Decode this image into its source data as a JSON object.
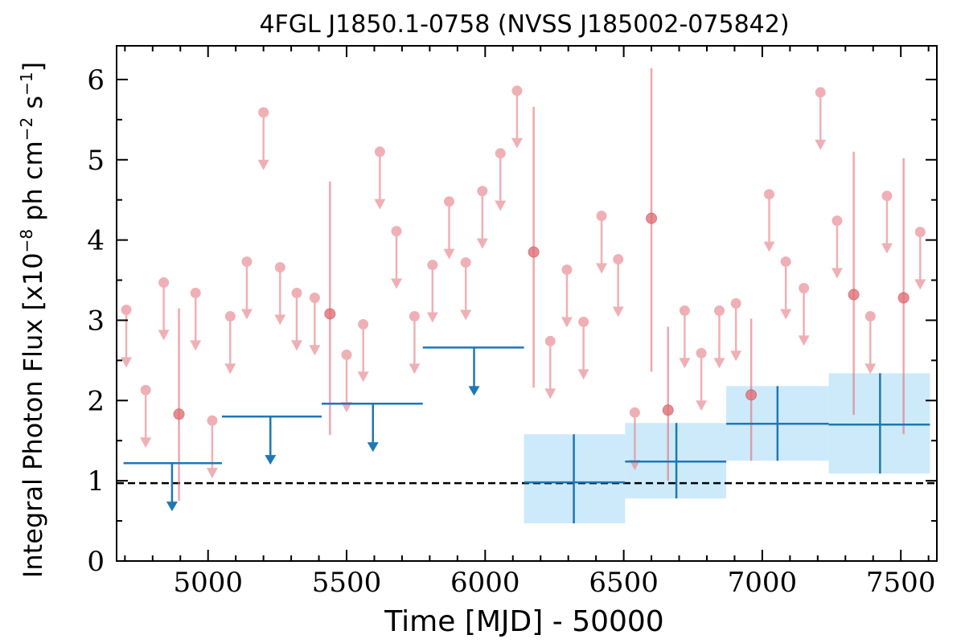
{
  "chart_data": {
    "type": "scatter",
    "title": "4FGL J1850.1-0758 (NVSS J185002-075842)",
    "xlabel": "Time [MJD] - 50000",
    "ylabel": "Integral Photon Flux [x10",
    "ylabel_exp": "−8",
    "ylabel_unit1": " ph cm",
    "ylabel_exp2": "−2",
    "ylabel_unit2": " s",
    "ylabel_exp3": "−1",
    "ylabel_end": "]",
    "xlim": [
      4670,
      7630
    ],
    "ylim": [
      0,
      6.42
    ],
    "x_ticks": [
      5000,
      5500,
      6000,
      6500,
      7000,
      7500
    ],
    "x_tick_labels": [
      "5000",
      "5500",
      "6000",
      "6500",
      "7000",
      "7500"
    ],
    "y_ticks": [
      0,
      1,
      2,
      3,
      4,
      5,
      6
    ],
    "y_tick_labels": [
      "0",
      "1",
      "2",
      "3",
      "4",
      "5",
      "6"
    ],
    "grid": false,
    "reference_line": {
      "y": 0.97,
      "style": "dashed",
      "color": "#000000"
    },
    "series": [
      {
        "marker": "circle with down arrow",
        "color": "#e8878e",
        "points": [
          {
            "x": 4705,
            "y": 3.13
          },
          {
            "x": 4775,
            "y": 2.13
          },
          {
            "x": 4840,
            "y": 3.47
          },
          {
            "x": 4955,
            "y": 3.34
          },
          {
            "x": 5015,
            "y": 1.75
          },
          {
            "x": 5080,
            "y": 3.05
          },
          {
            "x": 5140,
            "y": 3.73
          },
          {
            "x": 5200,
            "y": 5.59
          },
          {
            "x": 5260,
            "y": 3.66
          },
          {
            "x": 5320,
            "y": 3.34
          },
          {
            "x": 5385,
            "y": 3.28
          },
          {
            "x": 5500,
            "y": 2.57
          },
          {
            "x": 5560,
            "y": 2.95
          },
          {
            "x": 5620,
            "y": 5.1
          },
          {
            "x": 5680,
            "y": 4.11
          },
          {
            "x": 5745,
            "y": 3.05
          },
          {
            "x": 5810,
            "y": 3.69
          },
          {
            "x": 5870,
            "y": 4.48
          },
          {
            "x": 5930,
            "y": 3.72
          },
          {
            "x": 5990,
            "y": 4.61
          },
          {
            "x": 6055,
            "y": 5.08
          },
          {
            "x": 6115,
            "y": 5.86
          },
          {
            "x": 6235,
            "y": 2.74
          },
          {
            "x": 6295,
            "y": 3.63
          },
          {
            "x": 6355,
            "y": 2.98
          },
          {
            "x": 6420,
            "y": 4.3
          },
          {
            "x": 6480,
            "y": 3.76
          },
          {
            "x": 6540,
            "y": 1.85
          },
          {
            "x": 6720,
            "y": 3.12
          },
          {
            "x": 6780,
            "y": 2.59
          },
          {
            "x": 6845,
            "y": 3.12
          },
          {
            "x": 6905,
            "y": 3.21
          },
          {
            "x": 7025,
            "y": 4.57
          },
          {
            "x": 7085,
            "y": 3.73
          },
          {
            "x": 7150,
            "y": 3.4
          },
          {
            "x": 7210,
            "y": 5.84
          },
          {
            "x": 7270,
            "y": 4.24
          },
          {
            "x": 7390,
            "y": 3.05
          },
          {
            "x": 7450,
            "y": 4.55
          },
          {
            "x": 7570,
            "y": 4.1
          }
        ]
      },
      {
        "marker": "circle with error bar",
        "color": "#e07077",
        "points": [
          {
            "x": 4895,
            "y": 1.83,
            "yerr": [
              0.75,
              3.15
            ]
          },
          {
            "x": 5440,
            "y": 3.08,
            "yerr": [
              1.57,
              4.73
            ]
          },
          {
            "x": 6175,
            "y": 3.85,
            "yerr": [
              2.16,
              5.66
            ]
          },
          {
            "x": 6600,
            "y": 4.27,
            "yerr": [
              2.36,
              6.14
            ]
          },
          {
            "x": 6660,
            "y": 1.88,
            "yerr": [
              1.0,
              2.92
            ]
          },
          {
            "x": 6960,
            "y": 2.07,
            "yerr": [
              1.25,
              3.02
            ]
          },
          {
            "x": 7330,
            "y": 3.32,
            "yerr": [
              1.82,
              5.1
            ]
          },
          {
            "x": 7510,
            "y": 3.28,
            "yerr": [
              1.58,
              5.02
            ]
          }
        ]
      },
      {
        "marker": "horizontal bar with down arrow",
        "color": "#1f77b4",
        "points": [
          {
            "x": 4870,
            "y": 1.22,
            "xerr": [
              4695,
              5050
            ]
          },
          {
            "x": 5225,
            "y": 1.8,
            "xerr": [
              5050,
              5410
            ]
          },
          {
            "x": 5595,
            "y": 1.96,
            "xerr": [
              5410,
              5775
            ]
          },
          {
            "x": 5960,
            "y": 2.66,
            "xerr": [
              5775,
              6140
            ]
          }
        ]
      },
      {
        "marker": "crosshair with shaded band",
        "color": "#1f77b4",
        "band_color": "#cdeafa",
        "points": [
          {
            "x": 6320,
            "y": 0.98,
            "xerr": [
              6140,
              6505
            ],
            "yerr": [
              0.47,
              1.58
            ]
          },
          {
            "x": 6690,
            "y": 1.24,
            "xerr": [
              6505,
              6870
            ],
            "yerr": [
              0.78,
              1.72
            ]
          },
          {
            "x": 7055,
            "y": 1.71,
            "xerr": [
              6870,
              7240
            ],
            "yerr": [
              1.25,
              2.18
            ]
          },
          {
            "x": 7425,
            "y": 1.7,
            "xerr": [
              7240,
              7605
            ],
            "yerr": [
              1.09,
              2.34
            ]
          }
        ]
      }
    ]
  }
}
